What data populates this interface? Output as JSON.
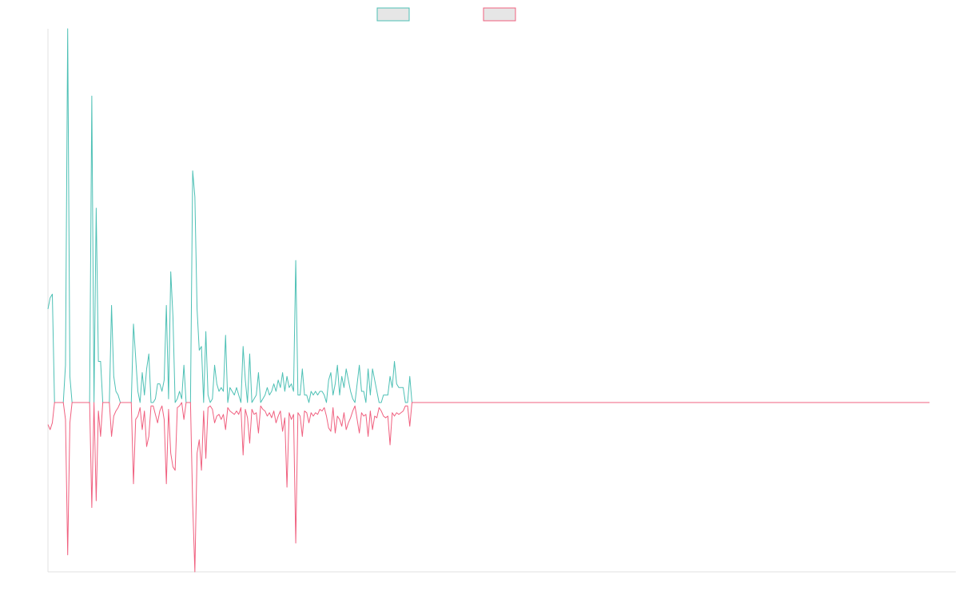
{
  "chart_data": {
    "type": "line",
    "title": "",
    "xlabel": "",
    "ylabel": "",
    "grid": false,
    "legend": "top-center",
    "x_count": 415,
    "ylim": [
      -1,
      1
    ],
    "colors": {
      "series_a": "#4dc0b5",
      "series_b": "#f0607f",
      "legend_fill": "#e6e6e6",
      "axis": "#e0e0e0"
    },
    "series": [
      {
        "color": "#4dc0b5",
        "values": [
          0.25,
          0.28,
          0.29,
          0.0,
          0.0,
          0.0,
          0.0,
          0.0,
          0.1,
          1.0,
          0.07,
          0.0,
          0.0,
          0.0,
          0.0,
          0.0,
          0.0,
          0.0,
          0.0,
          0.0,
          0.82,
          0.0,
          0.52,
          0.11,
          0.11,
          0.0,
          0.0,
          0.0,
          0.0,
          0.26,
          0.07,
          0.03,
          0.02,
          0.0,
          0.0,
          0.0,
          0.0,
          0.0,
          0.0,
          0.21,
          0.12,
          0.03,
          0.0,
          0.08,
          0.02,
          0.09,
          0.13,
          0.0,
          0.0,
          0.01,
          0.05,
          0.05,
          0.03,
          0.06,
          0.26,
          0.01,
          0.35,
          0.23,
          0.0,
          0.01,
          0.03,
          0.01,
          0.1,
          0.0,
          0.0,
          0.0,
          0.62,
          0.55,
          0.25,
          0.14,
          0.15,
          0.0,
          0.19,
          0.02,
          0.0,
          0.01,
          0.1,
          0.05,
          0.03,
          0.04,
          0.03,
          0.18,
          0.0,
          0.04,
          0.03,
          0.02,
          0.04,
          0.02,
          0.0,
          0.15,
          0.06,
          0.0,
          0.13,
          0.0,
          0.01,
          0.02,
          0.08,
          0.0,
          0.01,
          0.02,
          0.04,
          0.02,
          0.03,
          0.05,
          0.03,
          0.06,
          0.04,
          0.08,
          0.03,
          0.07,
          0.04,
          0.05,
          0.03,
          0.38,
          0.02,
          0.02,
          0.09,
          0.02,
          0.02,
          0.0,
          0.03,
          0.02,
          0.03,
          0.02,
          0.03,
          0.03,
          0.02,
          0.0,
          0.06,
          0.08,
          0.02,
          0.05,
          0.1,
          0.02,
          0.07,
          0.04,
          0.09,
          0.06,
          0.03,
          0.01,
          0.0,
          0.05,
          0.1,
          0.03,
          0.03,
          0.0,
          0.09,
          0.02,
          0.09,
          0.06,
          0.03,
          0.0,
          0.0,
          0.02,
          0.02,
          0.02,
          0.07,
          0.04,
          0.11,
          0.05,
          0.04,
          0.04,
          0.04,
          0.0,
          0.0,
          0.07,
          0.0,
          0.0,
          0.0,
          0.0,
          0.0,
          0.0,
          0.0,
          0.0,
          0.0,
          0.0,
          0.0,
          0.0,
          0.0,
          0.0,
          0.0,
          0.0,
          0.0,
          0.0,
          0.0,
          0.0,
          0.0,
          0.0,
          0.0,
          0.0,
          0.0,
          0.0,
          0.0,
          0.0,
          0.0,
          0.0,
          0.0,
          0.0,
          0.0,
          0.0,
          0.0,
          0.0,
          0.0,
          0.0,
          0.0,
          0.0,
          0.0,
          0.0,
          0.0,
          0.0,
          0.0,
          0.0,
          0.0,
          0.0,
          0.0,
          0.0,
          0.0,
          0.0,
          0.0,
          0.0,
          0.0,
          0.0,
          0.0,
          0.0,
          0.0,
          0.0,
          0.0,
          0.0,
          0.0,
          0.0,
          0.0,
          0.0,
          0.0,
          0.0,
          0.0,
          0.0,
          0.0,
          0.0,
          0.0,
          0.0,
          0.0,
          0.0,
          0.0,
          0.0,
          0.0,
          0.0,
          0.0,
          0.0,
          0.0,
          0.0,
          0.0,
          0.0,
          0.0,
          0.0,
          0.0,
          0.0,
          0.0,
          0.0,
          0.0,
          0.0,
          0.0,
          0.0,
          0.0,
          0.0,
          0.0,
          0.0,
          0.0,
          0.0,
          0.0,
          0.0,
          0.0,
          0.0,
          0.0,
          0.0,
          0.0,
          0.0,
          0.0,
          0.0,
          0.0,
          0.0,
          0.0,
          0.0,
          0.0,
          0.0,
          0.0,
          0.0,
          0.0,
          0.0,
          0.0,
          0.0,
          0.0,
          0.0,
          0.0,
          0.0,
          0.0,
          0.0,
          0.0,
          0.0,
          0.0,
          0.0,
          0.0,
          0.0,
          0.0,
          0.0,
          0.0,
          0.0,
          0.0,
          0.0,
          0.0,
          0.0,
          0.0,
          0.0,
          0.0,
          0.0,
          0.0,
          0.0,
          0.0,
          0.0,
          0.0,
          0.0,
          0.0,
          0.0,
          0.0,
          0.0,
          0.0,
          0.0,
          0.0,
          0.0,
          0.0,
          0.0,
          0.0,
          0.0,
          0.0,
          0.0,
          0.0,
          0.0,
          0.0,
          0.0,
          0.0,
          0.0,
          0.0,
          0.0,
          0.0,
          0.0,
          0.0,
          0.0,
          0.0,
          0.0,
          0.0,
          0.0,
          0.0,
          0.0,
          0.0,
          0.0,
          0.0,
          0.0,
          0.0,
          0.0,
          0.0,
          0.0,
          0.0,
          0.0,
          0.0,
          0.0,
          0.0,
          0.0,
          0.0,
          0.0,
          0.0,
          0.0,
          0.0,
          0.0,
          0.0,
          0.0,
          0.0,
          0.0,
          0.0,
          0.0,
          0.0,
          0.0,
          0.0,
          0.0,
          0.0,
          0.0,
          0.0,
          0.0,
          0.0,
          0.0,
          0.0,
          0.0,
          0.0,
          0.0,
          0.0,
          0.0,
          0.0,
          0.0,
          0.0,
          0.0,
          0.0,
          0.0,
          0.0,
          0.0,
          0.0
        ]
      },
      {
        "color": "#f0607f",
        "values": [
          -0.13,
          -0.16,
          -0.12,
          0.0,
          0.0,
          0.0,
          0.0,
          0.0,
          -0.1,
          -0.9,
          -0.12,
          0.0,
          0.0,
          0.0,
          0.0,
          0.0,
          0.0,
          0.0,
          0.0,
          0.0,
          -0.62,
          0.0,
          -0.58,
          -0.05,
          -0.2,
          0.0,
          0.0,
          0.0,
          0.0,
          -0.2,
          -0.08,
          -0.05,
          -0.03,
          0.0,
          0.0,
          0.0,
          0.0,
          0.0,
          0.0,
          -0.48,
          -0.1,
          -0.08,
          -0.03,
          -0.16,
          -0.05,
          -0.26,
          -0.2,
          -0.02,
          -0.02,
          -0.07,
          -0.12,
          -0.05,
          -0.02,
          -0.1,
          -0.48,
          -0.04,
          -0.3,
          -0.38,
          -0.4,
          -0.03,
          -0.02,
          0.0,
          -0.1,
          0.0,
          0.0,
          0.0,
          -0.6,
          -1.0,
          -0.3,
          -0.22,
          -0.4,
          -0.05,
          -0.33,
          -0.03,
          -0.02,
          -0.04,
          -0.12,
          -0.08,
          -0.07,
          -0.1,
          -0.07,
          -0.16,
          -0.03,
          -0.05,
          -0.06,
          -0.07,
          -0.05,
          -0.07,
          -0.03,
          -0.31,
          -0.04,
          -0.09,
          -0.24,
          -0.04,
          -0.07,
          -0.06,
          -0.18,
          -0.02,
          -0.04,
          -0.05,
          -0.08,
          -0.06,
          -0.09,
          -0.05,
          -0.12,
          -0.08,
          -0.05,
          -0.17,
          -0.09,
          -0.5,
          -0.06,
          -0.1,
          -0.07,
          -0.83,
          -0.06,
          -0.08,
          -0.2,
          -0.05,
          -0.06,
          -0.12,
          -0.06,
          -0.08,
          -0.06,
          -0.07,
          -0.04,
          -0.05,
          -0.03,
          -0.08,
          -0.15,
          -0.17,
          -0.03,
          -0.18,
          -0.08,
          -0.1,
          -0.14,
          -0.06,
          -0.16,
          -0.12,
          -0.09,
          -0.05,
          -0.02,
          -0.1,
          -0.18,
          -0.06,
          -0.08,
          -0.07,
          -0.2,
          -0.05,
          -0.16,
          -0.08,
          -0.09,
          -0.03,
          -0.05,
          -0.08,
          -0.09,
          -0.08,
          -0.25,
          -0.06,
          -0.08,
          -0.06,
          -0.07,
          -0.06,
          -0.05,
          -0.02,
          -0.02,
          -0.14,
          0.0,
          0.0,
          0.0,
          0.0,
          0.0,
          0.0,
          0.0,
          0.0,
          0.0,
          0.0,
          0.0,
          0.0,
          0.0,
          0.0,
          0.0,
          0.0,
          0.0,
          0.0,
          0.0,
          0.0,
          0.0,
          0.0,
          0.0,
          0.0,
          0.0,
          0.0,
          0.0,
          0.0,
          0.0,
          0.0,
          0.0,
          0.0,
          0.0,
          0.0,
          0.0,
          0.0,
          0.0,
          0.0,
          0.0,
          0.0,
          0.0,
          0.0,
          0.0,
          0.0,
          0.0,
          0.0,
          0.0,
          0.0,
          0.0,
          0.0,
          0.0,
          0.0,
          0.0,
          0.0,
          0.0,
          0.0,
          0.0,
          0.0,
          0.0,
          0.0,
          0.0,
          0.0,
          0.0,
          0.0,
          0.0,
          0.0,
          0.0,
          0.0,
          0.0,
          0.0,
          0.0,
          0.0,
          0.0,
          0.0,
          0.0,
          0.0,
          0.0,
          0.0,
          0.0,
          0.0,
          0.0,
          0.0,
          0.0,
          0.0,
          0.0,
          0.0,
          0.0,
          0.0,
          0.0,
          0.0,
          0.0,
          0.0,
          0.0,
          0.0,
          0.0,
          0.0,
          0.0,
          0.0,
          0.0,
          0.0,
          0.0,
          0.0,
          0.0,
          0.0,
          0.0,
          0.0,
          0.0,
          0.0,
          0.0,
          0.0,
          0.0,
          0.0,
          0.0,
          0.0,
          0.0,
          0.0,
          0.0,
          0.0,
          0.0,
          0.0,
          0.0,
          0.0,
          0.0,
          0.0,
          0.0,
          0.0,
          0.0,
          0.0,
          0.0,
          0.0,
          0.0,
          0.0,
          0.0,
          0.0,
          0.0,
          0.0,
          0.0,
          0.0,
          0.0,
          0.0,
          0.0,
          0.0,
          0.0,
          0.0,
          0.0,
          0.0,
          0.0,
          0.0,
          0.0,
          0.0,
          0.0,
          0.0,
          0.0,
          0.0,
          0.0,
          0.0,
          0.0,
          0.0,
          0.0,
          0.0,
          0.0,
          0.0,
          0.0,
          0.0,
          0.0,
          0.0,
          0.0,
          0.0,
          0.0,
          0.0,
          0.0,
          0.0,
          0.0,
          0.0,
          0.0,
          0.0,
          0.0,
          0.0,
          0.0,
          0.0,
          0.0,
          0.0,
          0.0,
          0.0,
          0.0,
          0.0,
          0.0,
          0.0,
          0.0,
          0.0,
          0.0,
          0.0,
          0.0,
          0.0,
          0.0,
          0.0,
          0.0,
          0.0,
          0.0,
          0.0,
          0.0,
          0.0,
          0.0,
          0.0,
          0.0,
          0.0,
          0.0,
          0.0,
          0.0,
          0.0,
          0.0,
          0.0,
          0.0,
          0.0,
          0.0,
          0.0,
          0.0,
          0.0,
          0.0,
          0.0,
          0.0,
          0.0,
          0.0,
          0.0,
          0.0,
          0.0,
          0.0,
          0.0,
          0.0,
          0.0,
          0.0,
          0.0,
          0.0,
          0.0,
          0.0,
          0.0,
          0.0
        ]
      }
    ]
  }
}
